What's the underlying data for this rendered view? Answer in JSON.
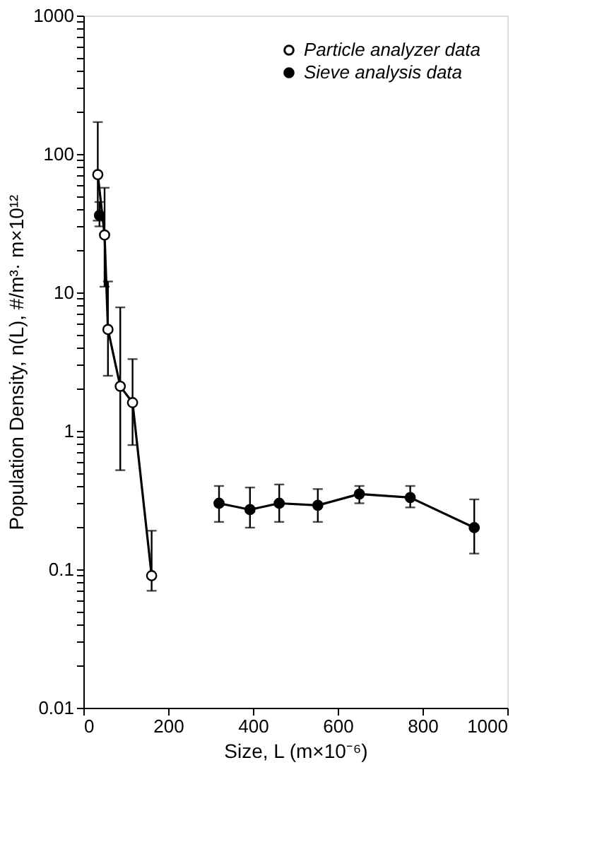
{
  "chart_data": {
    "type": "line",
    "xlabel": "Size, L (m×10⁻⁶)",
    "ylabel": "Population Density, n(L), #/m³· m×10¹²",
    "log": "y",
    "xlim": [
      0,
      1000
    ],
    "xticks": [
      0,
      200,
      400,
      600,
      800,
      1000
    ],
    "ylim": [
      0.01,
      1000
    ],
    "yticks": [
      0.01,
      {
        "value": 0.02,
        "label": null
      },
      {
        "value": 0.03,
        "label": null
      },
      {
        "value": 0.04,
        "label": null
      },
      {
        "value": 0.05,
        "label": null
      },
      {
        "value": 0.06,
        "label": null
      },
      {
        "value": 0.07,
        "label": null
      },
      {
        "value": 0.08,
        "label": null
      },
      {
        "value": 0.09,
        "label": null
      },
      0.1,
      {
        "value": 0.2,
        "label": null
      },
      {
        "value": 0.3,
        "label": null
      },
      {
        "value": 0.4,
        "label": null
      },
      {
        "value": 0.5,
        "label": null
      },
      {
        "value": 0.6,
        "label": null
      },
      {
        "value": 0.7,
        "label": null
      },
      {
        "value": 0.8,
        "label": null
      },
      {
        "value": 0.9,
        "label": null
      },
      1,
      {
        "value": 2,
        "label": null
      },
      {
        "value": 3,
        "label": null
      },
      {
        "value": 4,
        "label": null
      },
      {
        "value": 5,
        "label": null
      },
      {
        "value": 6,
        "label": null
      },
      {
        "value": 7,
        "label": null
      },
      {
        "value": 8,
        "label": null
      },
      {
        "value": 9,
        "label": null
      },
      10,
      {
        "value": 20,
        "label": null
      },
      {
        "value": 30,
        "label": null
      },
      {
        "value": 40,
        "label": null
      },
      {
        "value": 50,
        "label": null
      },
      {
        "value": 60,
        "label": null
      },
      {
        "value": 70,
        "label": null
      },
      {
        "value": 80,
        "label": null
      },
      {
        "value": 90,
        "label": null
      },
      100,
      {
        "value": 200,
        "label": null
      },
      {
        "value": 300,
        "label": null
      },
      {
        "value": 400,
        "label": null
      },
      {
        "value": 500,
        "label": null
      },
      {
        "value": 600,
        "label": null
      },
      {
        "value": 700,
        "label": null
      },
      {
        "value": 800,
        "label": null
      },
      {
        "value": 900,
        "label": null
      },
      1000
    ],
    "grid": false,
    "legend": "top right",
    "marker": "circle",
    "line_style": "solid",
    "series": [
      {
        "name": "Particle analyzer data",
        "color": "#000000",
        "colors": [
          "#ffffff",
          "#ffffff",
          "#ffffff",
          "#ffffff",
          "#ffffff",
          "#ffffff"
        ],
        "x": [
          34,
          50,
          58,
          87,
          116,
          161
        ],
        "values": [
          71,
          26,
          5.4,
          2.1,
          1.6,
          0.09
        ],
        "errors": [
          [
            33,
            170
          ],
          [
            11,
            57
          ],
          [
            2.5,
            12
          ],
          [
            0.52,
            7.8
          ],
          [
            0.79,
            3.3
          ],
          [
            0.07,
            0.19
          ]
        ]
      },
      {
        "name": "Sieve analysis data",
        "color": "#000000",
        "x": [
          320,
          393,
          462,
          553,
          651,
          771,
          922
        ],
        "values": [
          0.3,
          0.27,
          0.3,
          0.29,
          0.35,
          0.33,
          0.2
        ],
        "errors": [
          [
            0.22,
            0.4
          ],
          [
            0.2,
            0.39
          ],
          [
            0.22,
            0.41
          ],
          [
            0.22,
            0.38
          ],
          [
            0.3,
            0.4
          ],
          [
            0.28,
            0.4
          ],
          [
            0.13,
            0.32
          ]
        ]
      },
      {
        "type": "scatter",
        "color": "#000000",
        "x": [
          38
        ],
        "values": [
          36
        ],
        "errors": [
          [
            30,
            45
          ]
        ]
      }
    ]
  }
}
